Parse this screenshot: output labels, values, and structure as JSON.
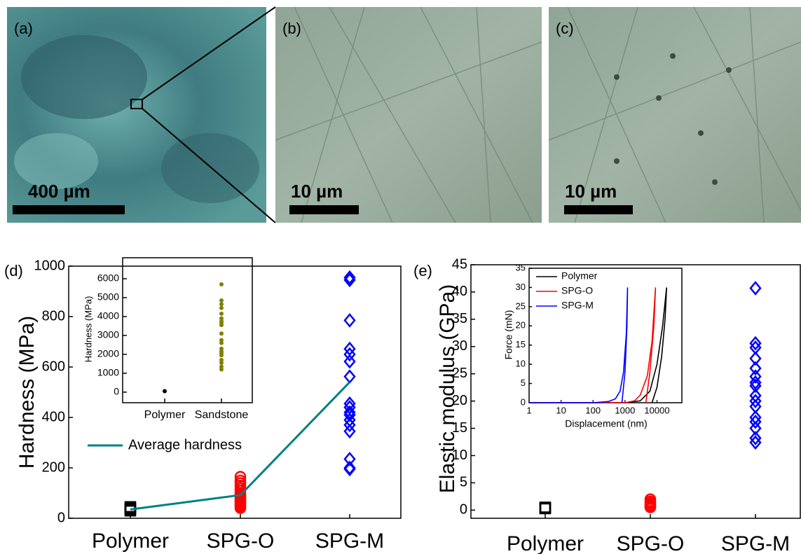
{
  "micrographs": [
    {
      "label": "(a)",
      "scale_bar": "400 µm"
    },
    {
      "label": "(b)",
      "scale_bar": "10 µm"
    },
    {
      "label": "(c)",
      "scale_bar": "10 µm"
    }
  ],
  "chart_data": [
    {
      "type": "scatter",
      "label": "(d)",
      "y_label": "Hardness (MPa)",
      "categories": [
        "Polymer",
        "SPG-O",
        "SPG-M"
      ],
      "values": [
        [
          45,
          40,
          35,
          30
        ],
        [
          165,
          150,
          140,
          130,
          120,
          110,
          100,
          95,
          90,
          85,
          80,
          75,
          70,
          65,
          60,
          55,
          50,
          45,
          40
        ],
        [
          955,
          945,
          785,
          672,
          650,
          622,
          562,
          455,
          440,
          420,
          410,
          390,
          370,
          345,
          235,
          200,
          195
        ]
      ],
      "colors": [
        "#000000",
        "#ff0000",
        "#0000ff"
      ],
      "markers": [
        "square",
        "circle",
        "diamond"
      ],
      "line": {
        "name": "Average hardness",
        "color": "#008080",
        "values": [
          35,
          92,
          540
        ]
      },
      "ylim": [
        0,
        1000
      ],
      "yticks": [
        0,
        200,
        400,
        600,
        800,
        1000
      ],
      "inset": {
        "type": "scatter",
        "y_label": "Hardness (MPa)",
        "categories": [
          "Polymer",
          "Sandstone"
        ],
        "values": [
          [
            50
          ],
          [
            5700,
            4850,
            4650,
            4450,
            4150,
            3900,
            3750,
            3650,
            3550,
            3100,
            2750,
            2600,
            2300,
            2150,
            2050,
            1950,
            1700,
            1550,
            1350,
            1200
          ]
        ],
        "colors": [
          "#000000",
          "#808000"
        ],
        "ylim": [
          -560,
          7110
        ],
        "yticks": [
          0,
          1000,
          2000,
          3000,
          4000,
          5000,
          6000
        ]
      }
    },
    {
      "type": "scatter",
      "label": "(e)",
      "y_label": "Elastic modulus (GPa)",
      "categories": [
        "Polymer",
        "SPG-O",
        "SPG-M"
      ],
      "values": [
        [
          0.5,
          0.4,
          0.3
        ],
        [
          2.0,
          1.6,
          1.3,
          1.0,
          0.8,
          0.6,
          0.5
        ],
        [
          40.7,
          30.6,
          29.8,
          27.8,
          26,
          24.5,
          23.4,
          22.8,
          21,
          20,
          19,
          17,
          16.2,
          15,
          13.2,
          12.4
        ]
      ],
      "colors": [
        "#000000",
        "#ff0000",
        "#0000ff"
      ],
      "markers": [
        "square",
        "circle",
        "diamond"
      ],
      "ylim": [
        -1.5,
        45
      ],
      "yticks": [
        0,
        5,
        10,
        15,
        20,
        25,
        30,
        35,
        40,
        45
      ],
      "inset": {
        "type": "line",
        "log_x": true,
        "x_label": "Displacement (nm)",
        "y_label": "Force (mN)",
        "xlim": [
          1,
          60000
        ],
        "xticks": [
          1,
          10,
          100,
          1000,
          10000
        ],
        "ylim": [
          0,
          35
        ],
        "yticks": [
          0,
          5,
          10,
          15,
          20,
          25,
          30,
          35
        ],
        "series": [
          {
            "name": "Polymer",
            "color": "#000000",
            "x": [
              1,
              100,
              1000,
              3000,
              6000,
              10000,
              15000,
              20000,
              18000,
              14000,
              10000,
              7000
            ],
            "values": [
              0,
              0,
              0,
              0.5,
              3,
              10,
              20,
              30,
              22,
              12,
              4,
              0
            ]
          },
          {
            "name": "SPG-O",
            "color": "#ff0000",
            "x": [
              1,
              100,
              1000,
              2000,
              3000,
              5000,
              7000,
              9000,
              8000,
              6000,
              4500
            ],
            "values": [
              0,
              0,
              0,
              0.5,
              2,
              7,
              16,
              30,
              20,
              8,
              0
            ]
          },
          {
            "name": "SPG-M",
            "color": "#0000ff",
            "x": [
              1,
              100,
              300,
              500,
              700,
              900,
              1100,
              1200,
              1150,
              1000,
              800
            ],
            "values": [
              0,
              0,
              0.3,
              1,
              3,
              8,
              18,
              30,
              20,
              8,
              0
            ]
          }
        ]
      }
    }
  ]
}
